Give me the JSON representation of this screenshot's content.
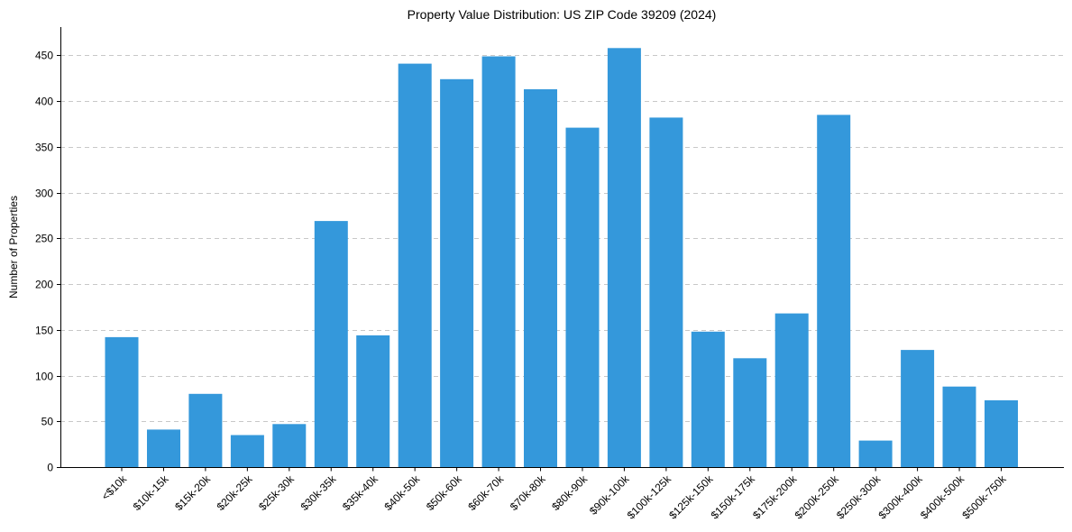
{
  "chart_data": {
    "type": "bar",
    "title": "Property Value Distribution: US ZIP Code 39209 (2024)",
    "xlabel": "",
    "ylabel": "Number of Properties",
    "categories": [
      "<$10k",
      "$10k-15k",
      "$15k-20k",
      "$20k-25k",
      "$25k-30k",
      "$30k-35k",
      "$35k-40k",
      "$40k-50k",
      "$50k-60k",
      "$60k-70k",
      "$70k-80k",
      "$80k-90k",
      "$90k-100k",
      "$100k-125k",
      "$125k-150k",
      "$150k-175k",
      "$175k-200k",
      "$200k-250k",
      "$250k-300k",
      "$300k-400k",
      "$400k-500k",
      "$500k-750k"
    ],
    "values": [
      142,
      41,
      80,
      35,
      47,
      269,
      144,
      441,
      424,
      449,
      413,
      371,
      458,
      382,
      148,
      119,
      168,
      385,
      29,
      128,
      88,
      73
    ],
    "ylim": [
      0,
      481
    ],
    "yticks": [
      0,
      50,
      100,
      150,
      200,
      250,
      300,
      350,
      400,
      450
    ],
    "grid": true,
    "bar_color": "#3498db"
  }
}
